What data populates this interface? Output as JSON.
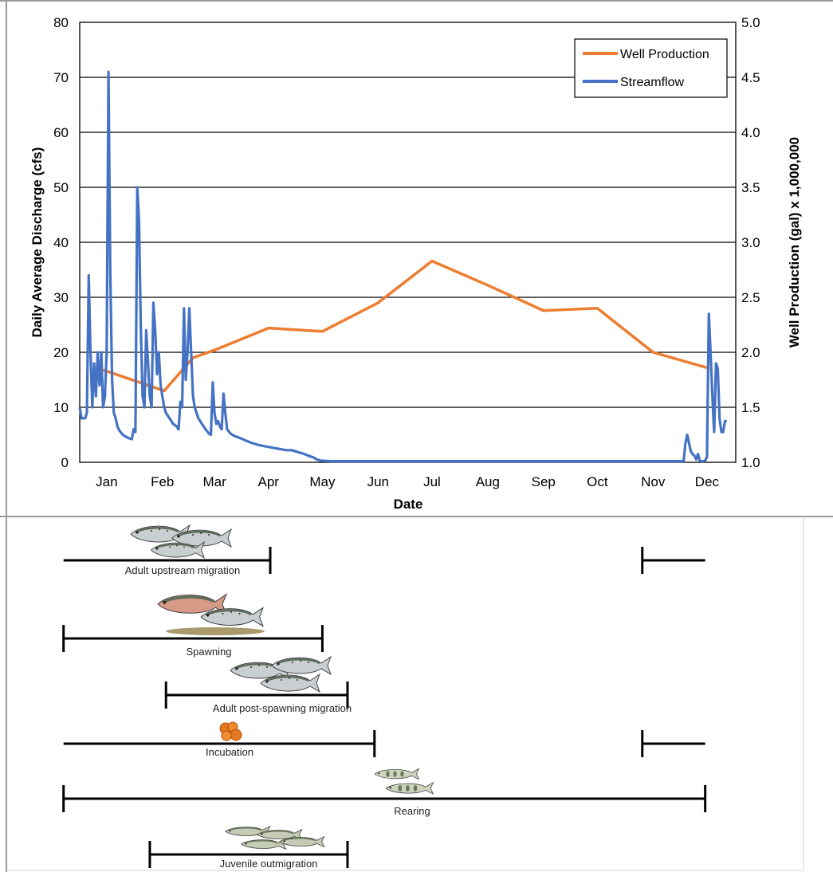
{
  "chart_data": {
    "type": "line",
    "xlabel": "Date",
    "ylabel_left": "Daily Average Discharge (cfs)",
    "ylabel_right": "Well Production (gal) x 1,000,000",
    "ylim_left": [
      0,
      80
    ],
    "ylim_right": [
      1.0,
      5.0
    ],
    "y_ticks_left": [
      "0",
      "10",
      "20",
      "30",
      "40",
      "50",
      "60",
      "70",
      "80"
    ],
    "y_ticks_right": [
      "1.0",
      "1.5",
      "2.0",
      "2.5",
      "3.0",
      "3.5",
      "4.0",
      "4.5",
      "5.0"
    ],
    "months": [
      {
        "label": "Jan",
        "day": 15
      },
      {
        "label": "Feb",
        "day": 46
      },
      {
        "label": "Mar",
        "day": 75
      },
      {
        "label": "Apr",
        "day": 105
      },
      {
        "label": "May",
        "day": 135
      },
      {
        "label": "Jun",
        "day": 166
      },
      {
        "label": "Jul",
        "day": 196
      },
      {
        "label": "Aug",
        "day": 227
      },
      {
        "label": "Sep",
        "day": 258
      },
      {
        "label": "Oct",
        "day": 288
      },
      {
        "label": "Nov",
        "day": 319
      },
      {
        "label": "Dec",
        "day": 349
      }
    ],
    "grid": true,
    "legend_position": "top-right",
    "series": [
      {
        "name": "Well Production",
        "axis": "right",
        "color": "#ED7D31",
        "points": [
          [
            13,
            1.84
          ],
          [
            47,
            1.65
          ],
          [
            63,
            1.95
          ],
          [
            75,
            2.02
          ],
          [
            105,
            2.22
          ],
          [
            135,
            2.19
          ],
          [
            166,
            2.45
          ],
          [
            196,
            2.83
          ],
          [
            227,
            2.61
          ],
          [
            258,
            2.38
          ],
          [
            288,
            2.4
          ],
          [
            319,
            2.0
          ],
          [
            349,
            1.86
          ]
        ]
      },
      {
        "name": "Streamflow",
        "axis": "left",
        "color": "#4472C4",
        "points": [
          [
            0,
            10
          ],
          [
            1,
            8
          ],
          [
            2,
            8
          ],
          [
            3,
            8
          ],
          [
            4,
            9
          ],
          [
            5,
            34
          ],
          [
            6,
            20
          ],
          [
            7,
            10
          ],
          [
            8,
            18
          ],
          [
            9,
            12
          ],
          [
            10,
            20
          ],
          [
            11,
            14
          ],
          [
            12,
            20
          ],
          [
            13,
            10
          ],
          [
            14,
            12
          ],
          [
            15,
            20
          ],
          [
            16,
            71
          ],
          [
            17,
            35
          ],
          [
            18,
            15
          ],
          [
            19,
            9
          ],
          [
            20,
            8
          ],
          [
            21,
            6.5
          ],
          [
            22,
            5.8
          ],
          [
            24,
            5
          ],
          [
            26,
            4.6
          ],
          [
            28,
            4.3
          ],
          [
            29,
            4.2
          ],
          [
            30,
            6
          ],
          [
            31,
            5.5
          ],
          [
            32,
            50
          ],
          [
            33,
            44
          ],
          [
            34,
            24
          ],
          [
            35,
            12
          ],
          [
            36,
            10
          ],
          [
            37,
            24
          ],
          [
            38,
            18
          ],
          [
            39,
            12
          ],
          [
            40,
            10
          ],
          [
            41,
            29
          ],
          [
            42,
            24
          ],
          [
            43,
            16
          ],
          [
            44,
            20
          ],
          [
            45,
            14
          ],
          [
            46,
            12
          ],
          [
            47,
            10
          ],
          [
            48,
            9
          ],
          [
            50,
            8
          ],
          [
            52,
            7
          ],
          [
            54,
            6.5
          ],
          [
            55,
            6
          ],
          [
            56,
            11
          ],
          [
            57,
            10
          ],
          [
            58,
            28
          ],
          [
            59,
            15
          ],
          [
            60,
            20
          ],
          [
            61,
            28
          ],
          [
            62,
            20
          ],
          [
            63,
            12
          ],
          [
            64,
            10
          ],
          [
            66,
            8
          ],
          [
            68,
            7
          ],
          [
            70,
            6
          ],
          [
            72,
            5.2
          ],
          [
            73,
            5
          ],
          [
            74,
            14.5
          ],
          [
            75,
            9
          ],
          [
            76,
            7
          ],
          [
            77,
            7.5
          ],
          [
            78,
            6.5
          ],
          [
            79,
            6
          ],
          [
            80,
            12.5
          ],
          [
            81,
            9
          ],
          [
            82,
            6
          ],
          [
            84,
            5.2
          ],
          [
            86,
            4.8
          ],
          [
            90,
            4.3
          ],
          [
            95,
            3.6
          ],
          [
            100,
            3.1
          ],
          [
            105,
            2.8
          ],
          [
            110,
            2.5
          ],
          [
            115,
            2.2
          ],
          [
            118,
            2.2
          ],
          [
            122,
            1.8
          ],
          [
            125,
            1.5
          ],
          [
            128,
            1.1
          ],
          [
            130,
            0.9
          ],
          [
            132,
            0.5
          ],
          [
            134,
            0.3
          ],
          [
            140,
            0.2
          ],
          [
            200,
            0.2
          ],
          [
            300,
            0.2
          ],
          [
            336,
            0.2
          ],
          [
            337,
            3.5
          ],
          [
            338,
            5
          ],
          [
            339,
            3.5
          ],
          [
            340,
            2
          ],
          [
            341,
            1.5
          ],
          [
            342,
            1.2
          ],
          [
            343,
            0.5
          ],
          [
            344,
            1.5
          ],
          [
            345,
            0.3
          ],
          [
            346,
            0.2
          ],
          [
            347,
            0.2
          ],
          [
            348,
            0.3
          ],
          [
            349,
            1
          ],
          [
            350,
            27
          ],
          [
            351,
            20
          ],
          [
            352,
            12
          ],
          [
            353,
            5.5
          ],
          [
            354,
            18
          ],
          [
            355,
            17
          ],
          [
            356,
            8
          ],
          [
            357,
            5.5
          ],
          [
            358,
            5.5
          ],
          [
            359,
            7.5
          ],
          [
            360,
            7.5
          ]
        ]
      }
    ],
    "life_stages": [
      {
        "label": "Adult upstream migration",
        "segments": [
          [
            -9,
            106
          ],
          [
            313,
            348
          ]
        ]
      },
      {
        "label": "Spawning",
        "segments": [
          [
            -9,
            135
          ]
        ]
      },
      {
        "label": "Adult post-spawning migration",
        "segments": [
          [
            48,
            149
          ]
        ]
      },
      {
        "label": "Incubation",
        "segments": [
          [
            -9,
            164
          ],
          [
            313,
            348
          ]
        ]
      },
      {
        "label": "Rearing",
        "segments": [
          [
            -9,
            348
          ]
        ]
      },
      {
        "label": "Juvenile outmigration",
        "segments": [
          [
            39,
            149
          ]
        ]
      }
    ]
  }
}
